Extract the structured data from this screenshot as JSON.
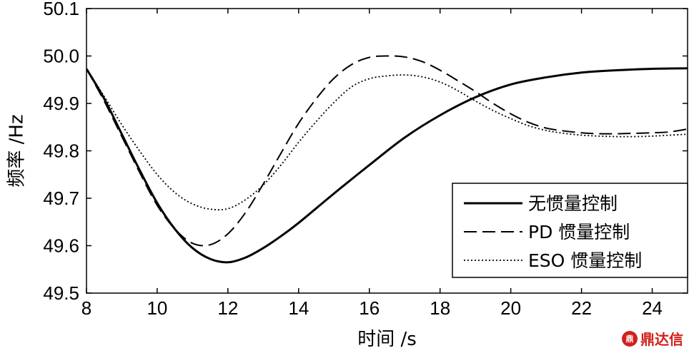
{
  "chart_data": {
    "type": "line",
    "xlabel": "时间 /s",
    "ylabel": "频率 /Hz",
    "xlim": [
      8,
      25
    ],
    "ylim": [
      49.5,
      50.1
    ],
    "xticks": [
      "8",
      "10",
      "12",
      "14",
      "16",
      "18",
      "20",
      "22",
      "24"
    ],
    "yticks": [
      "49.5",
      "49.6",
      "49.7",
      "49.8",
      "49.9",
      "50.0",
      "50.1"
    ],
    "grid": false,
    "legend_position": "bottom-right",
    "series": [
      {
        "name": "无惯量控制",
        "style": "solid",
        "x": [
          8,
          8.5,
          9,
          9.5,
          10,
          10.5,
          11,
          11.5,
          12,
          12.5,
          13,
          13.5,
          14,
          15,
          16,
          17,
          18,
          19,
          20,
          21,
          22,
          23,
          24,
          25
        ],
        "y": [
          49.973,
          49.91,
          49.835,
          49.76,
          49.69,
          49.635,
          49.595,
          49.572,
          49.565,
          49.575,
          49.595,
          49.62,
          49.648,
          49.71,
          49.77,
          49.828,
          49.875,
          49.913,
          49.94,
          49.955,
          49.965,
          49.97,
          49.973,
          49.974
        ]
      },
      {
        "name": "PD 惯量控制",
        "style": "dashed",
        "x": [
          8,
          8.5,
          9,
          9.5,
          10,
          10.5,
          11,
          11.5,
          12,
          12.5,
          13,
          13.5,
          14,
          14.5,
          15,
          15.5,
          16,
          16.5,
          17,
          17.5,
          18,
          18.5,
          19,
          19.5,
          20,
          20.5,
          21,
          21.5,
          22,
          22.5,
          23,
          23.5,
          24,
          24.5,
          25
        ],
        "y": [
          49.973,
          49.905,
          49.83,
          49.755,
          49.685,
          49.635,
          49.605,
          49.602,
          49.625,
          49.67,
          49.73,
          49.795,
          49.858,
          49.91,
          49.953,
          49.982,
          49.997,
          50.0,
          49.998,
          49.988,
          49.97,
          49.948,
          49.925,
          49.9,
          49.878,
          49.86,
          49.848,
          49.842,
          49.838,
          49.836,
          49.836,
          49.837,
          49.838,
          49.84,
          49.846
        ]
      },
      {
        "name": "ESO 惯量控制",
        "style": "dotted",
        "x": [
          8,
          8.5,
          9,
          9.5,
          10,
          10.5,
          11,
          11.5,
          12,
          12.5,
          13,
          13.5,
          14,
          14.5,
          15,
          15.5,
          16,
          16.5,
          17,
          17.5,
          18,
          18.5,
          19,
          19.5,
          20,
          20.5,
          21,
          21.5,
          22,
          22.5,
          23,
          23.5,
          24,
          24.5,
          25
        ],
        "y": [
          49.973,
          49.915,
          49.855,
          49.8,
          49.75,
          49.712,
          49.688,
          49.677,
          49.678,
          49.697,
          49.728,
          49.77,
          49.818,
          49.862,
          49.902,
          49.935,
          49.952,
          49.958,
          49.96,
          49.956,
          49.945,
          49.927,
          49.905,
          49.885,
          49.868,
          49.853,
          49.843,
          49.837,
          49.833,
          49.831,
          49.83,
          49.83,
          49.831,
          49.833,
          49.835
        ]
      }
    ]
  },
  "watermark": {
    "logo": "鼎",
    "text": "鼎达信"
  }
}
